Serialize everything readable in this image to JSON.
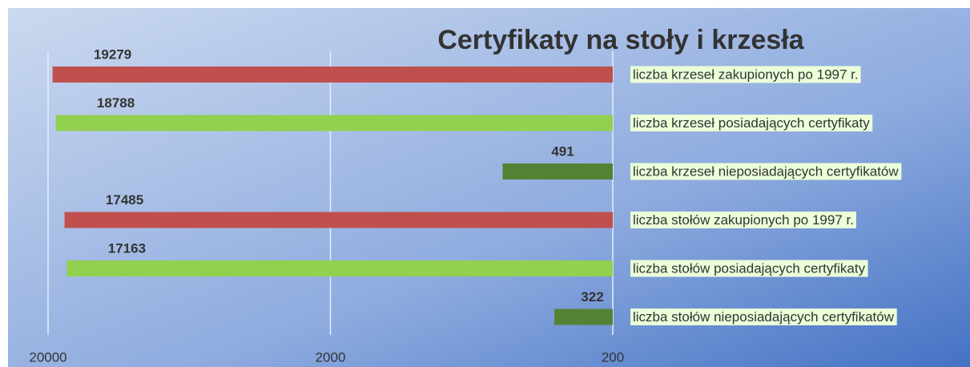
{
  "chart_data": {
    "type": "bar",
    "orientation": "horizontal",
    "title": "Certyfikaty na stoły i krzesła",
    "categories": [
      "liczba krzeseł zakupionych po 1997 r.",
      "liczba krzeseł posiadających certyfikaty",
      "liczba krzeseł nieposiadających certyfikatów",
      "liczba stołów zakupionych po 1997 r.",
      "liczba stołów posiadających certyfikaty",
      "liczba stołów nieposiadających certyfikatów"
    ],
    "values": [
      19279,
      18788,
      491,
      17485,
      17163,
      322
    ],
    "colors": [
      "#c0504d",
      "#92d050",
      "#548235",
      "#c0504d",
      "#92d050",
      "#548235"
    ],
    "xlim": [
      20000,
      200
    ],
    "xticks": [
      20000,
      2000,
      200
    ],
    "x_log": true,
    "grid": true
  }
}
